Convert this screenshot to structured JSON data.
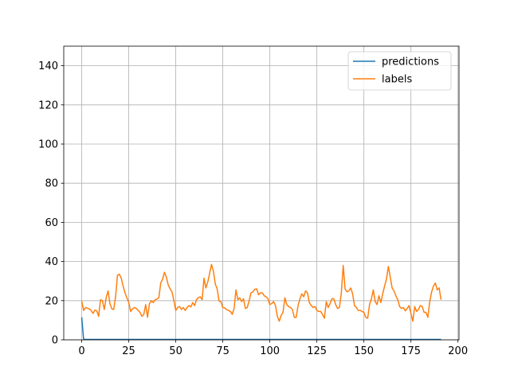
{
  "chart_data": {
    "type": "line",
    "title": "",
    "xlabel": "",
    "ylabel": "",
    "xlim": [
      -9.55,
      200.55
    ],
    "ylim": [
      0,
      150
    ],
    "xticks": [
      0,
      25,
      50,
      75,
      100,
      125,
      150,
      175,
      200
    ],
    "yticks": [
      0,
      20,
      40,
      60,
      80,
      100,
      120,
      140
    ],
    "grid": true,
    "legend_position": "top-right",
    "series": [
      {
        "name": "predictions",
        "color": "#1f77b4",
        "x": [
          0,
          1,
          2,
          10,
          50,
          100,
          150,
          191
        ],
        "y": [
          11.5,
          0.3,
          0.2,
          0.2,
          0.2,
          0.2,
          0.2,
          0.2
        ]
      },
      {
        "name": "labels",
        "color": "#ff7f0e",
        "x": [
          0,
          1,
          2,
          3,
          4,
          5,
          6,
          7,
          8,
          9,
          10,
          11,
          12,
          13,
          14,
          15,
          16,
          17,
          18,
          19,
          20,
          21,
          22,
          23,
          24,
          25,
          26,
          27,
          28,
          29,
          30,
          31,
          32,
          33,
          34,
          35,
          36,
          37,
          38,
          39,
          40,
          41,
          42,
          43,
          44,
          45,
          46,
          47,
          48,
          49,
          50,
          51,
          52,
          53,
          54,
          55,
          56,
          57,
          58,
          59,
          60,
          61,
          62,
          63,
          64,
          65,
          66,
          67,
          68,
          69,
          70,
          71,
          72,
          73,
          74,
          75,
          76,
          77,
          78,
          79,
          80,
          81,
          82,
          83,
          84,
          85,
          86,
          87,
          88,
          89,
          90,
          91,
          92,
          93,
          94,
          95,
          96,
          97,
          98,
          99,
          100,
          101,
          102,
          103,
          104,
          105,
          106,
          107,
          108,
          109,
          110,
          111,
          112,
          113,
          114,
          115,
          116,
          117,
          118,
          119,
          120,
          121,
          122,
          123,
          124,
          125,
          126,
          127,
          128,
          129,
          130,
          131,
          132,
          133,
          134,
          135,
          136,
          137,
          138,
          139,
          140,
          141,
          142,
          143,
          144,
          145,
          146,
          147,
          148,
          149,
          150,
          151,
          152,
          153,
          154,
          155,
          156,
          157,
          158,
          159,
          160,
          161,
          162,
          163,
          164,
          165,
          166,
          167,
          168,
          169,
          170,
          171,
          172,
          173,
          174,
          175,
          176,
          177,
          178,
          179,
          180,
          181,
          182,
          183,
          184,
          185,
          186,
          187,
          188,
          189,
          190,
          191
        ],
        "y": [
          19.8,
          15.0,
          16.5,
          16.2,
          15.8,
          15.0,
          13.5,
          15.2,
          14.8,
          12.0,
          20.5,
          20.0,
          15.5,
          21.5,
          25.0,
          18.5,
          15.8,
          15.5,
          22.0,
          33.0,
          33.5,
          31.5,
          27.5,
          24.0,
          21.5,
          19.0,
          14.5,
          15.8,
          16.5,
          16.0,
          15.0,
          14.0,
          12.0,
          13.0,
          18.0,
          11.5,
          18.5,
          20.0,
          19.0,
          20.5,
          20.8,
          21.5,
          29.0,
          31.0,
          34.5,
          32.0,
          28.0,
          26.0,
          24.5,
          20.0,
          15.0,
          16.5,
          17.0,
          15.5,
          16.5,
          15.0,
          16.5,
          17.5,
          16.8,
          19.0,
          17.5,
          20.5,
          21.5,
          22.0,
          20.5,
          31.5,
          26.5,
          29.5,
          34.0,
          38.5,
          35.0,
          28.5,
          26.0,
          19.8,
          19.5,
          16.5,
          16.3,
          15.5,
          15.0,
          14.5,
          13.0,
          16.0,
          25.5,
          20.5,
          21.5,
          19.5,
          21.0,
          16.0,
          16.5,
          20.0,
          24.0,
          24.5,
          25.8,
          26.0,
          23.0,
          24.0,
          24.0,
          22.5,
          22.0,
          21.0,
          18.0,
          18.5,
          19.5,
          17.5,
          12.0,
          9.5,
          12.5,
          14.0,
          21.5,
          18.0,
          17.0,
          16.5,
          15.5,
          11.5,
          11.5,
          17.5,
          21.0,
          23.5,
          22.0,
          25.0,
          24.0,
          19.0,
          17.5,
          16.5,
          17.0,
          15.0,
          14.5,
          14.5,
          13.0,
          11.0,
          19.5,
          16.5,
          18.5,
          21.0,
          21.0,
          18.0,
          16.0,
          16.5,
          24.0,
          38.0,
          26.0,
          24.5,
          25.0,
          26.5,
          23.5,
          17.5,
          16.5,
          15.0,
          15.0,
          14.5,
          14.0,
          11.5,
          11.0,
          18.0,
          21.0,
          25.5,
          19.5,
          18.0,
          22.5,
          19.0,
          23.5,
          27.5,
          31.0,
          37.5,
          32.0,
          26.5,
          25.0,
          22.5,
          20.5,
          17.0,
          16.0,
          16.5,
          14.8,
          16.0,
          17.5,
          13.5,
          9.5,
          17.0,
          14.5,
          15.5,
          17.5,
          17.0,
          14.0,
          14.0,
          11.5,
          19.5,
          24.5,
          27.5,
          29.0,
          25.5,
          26.5,
          20.5
        ]
      }
    ]
  }
}
